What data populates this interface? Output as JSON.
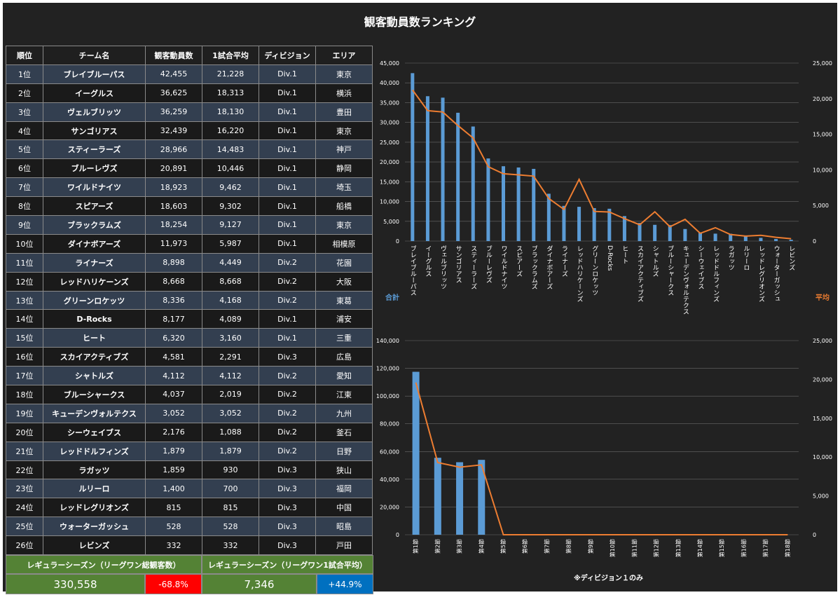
{
  "title": "観客動員数ランキング",
  "colors": {
    "bar": "#5b9bd5",
    "line": "#ed7d31",
    "positive": "#0070c0",
    "negative": "#ff0000",
    "summary": "#548235"
  },
  "table": {
    "headers": [
      "順位",
      "チーム名",
      "観客動員数",
      "1試合平均",
      "ディビジョン",
      "エリア"
    ],
    "rows": [
      [
        "1位",
        "ブレイブルーパス",
        "42,455",
        "21,228",
        "Div.1",
        "東京"
      ],
      [
        "2位",
        "イーグルス",
        "36,625",
        "18,313",
        "Div.1",
        "横浜"
      ],
      [
        "3位",
        "ヴェルブリッツ",
        "36,259",
        "18,130",
        "Div.1",
        "豊田"
      ],
      [
        "4位",
        "サンゴリアス",
        "32,439",
        "16,220",
        "Div.1",
        "東京"
      ],
      [
        "5位",
        "スティーラーズ",
        "28,966",
        "14,483",
        "Div.1",
        "神戸"
      ],
      [
        "6位",
        "ブルーレヴズ",
        "20,891",
        "10,446",
        "Div.1",
        "静岡"
      ],
      [
        "7位",
        "ワイルドナイツ",
        "18,923",
        "9,462",
        "Div.1",
        "埼玉"
      ],
      [
        "8位",
        "スピアーズ",
        "18,603",
        "9,302",
        "Div.1",
        "船橋"
      ],
      [
        "9位",
        "ブラックラムズ",
        "18,254",
        "9,127",
        "Div.1",
        "東京"
      ],
      [
        "10位",
        "ダイナボアーズ",
        "11,973",
        "5,987",
        "Div.1",
        "相模原"
      ],
      [
        "11位",
        "ライナーズ",
        "8,898",
        "4,449",
        "Div.2",
        "花園"
      ],
      [
        "12位",
        "レッドハリケーンズ",
        "8,668",
        "8,668",
        "Div.2",
        "大阪"
      ],
      [
        "13位",
        "グリーンロケッツ",
        "8,336",
        "4,168",
        "Div.2",
        "東葛"
      ],
      [
        "14位",
        "D-Rocks",
        "8,177",
        "4,089",
        "Div.1",
        "浦安"
      ],
      [
        "15位",
        "ヒート",
        "6,320",
        "3,160",
        "Div.1",
        "三重"
      ],
      [
        "16位",
        "スカイアクティブズ",
        "4,581",
        "2,291",
        "Div.3",
        "広島"
      ],
      [
        "17位",
        "シャトルズ",
        "4,112",
        "4,112",
        "Div.2",
        "愛知"
      ],
      [
        "18位",
        "ブルーシャークス",
        "4,037",
        "2,019",
        "Div.2",
        "江東"
      ],
      [
        "19位",
        "キューデンヴォルテクス",
        "3,052",
        "3,052",
        "Div.2",
        "九州"
      ],
      [
        "20位",
        "シーウェイブス",
        "2,176",
        "1,088",
        "Div.2",
        "釜石"
      ],
      [
        "21位",
        "レッドドルフィンズ",
        "1,879",
        "1,879",
        "Div.2",
        "日野"
      ],
      [
        "22位",
        "ラガッツ",
        "1,859",
        "930",
        "Div.3",
        "狭山"
      ],
      [
        "23位",
        "ルリーロ",
        "1,400",
        "700",
        "Div.3",
        "福岡"
      ],
      [
        "24位",
        "レッドレグリオンズ",
        "815",
        "815",
        "Div.3",
        "中国"
      ],
      [
        "25位",
        "ウォーターガッシュ",
        "528",
        "528",
        "Div.3",
        "昭島"
      ],
      [
        "26位",
        "レビンズ",
        "332",
        "332",
        "Div.3",
        "戸田"
      ]
    ]
  },
  "summary": {
    "total_label": "レギュラーシーズン（リーグワン総観客数）",
    "avg_label": "レギュラーシーズン（リーグワン1試合平均）",
    "total_value": "330,558",
    "total_change": "-68.8%",
    "avg_value": "7,346",
    "avg_change": "+44.9%"
  },
  "note": "※ディビジョン１のみ",
  "chart_data": [
    {
      "type": "bar",
      "categories": [
        "ブレイブルーパス",
        "イーグルス",
        "ヴェルブリッツ",
        "サンゴリアス",
        "スティーラーズ",
        "ブルーレヴズ",
        "ワイルドナイツ",
        "スピアーズ",
        "ブラックラムズ",
        "ダイナボアーズ",
        "ライナーズ",
        "レッドハリケーンズ",
        "グリーンロケッツ",
        "D-Rocks",
        "ヒート",
        "スカイアクティブズ",
        "シャトルズ",
        "ブルーシャークス",
        "キューデンヴォルテクス",
        "シーウェイブス",
        "レッドドルフィンズ",
        "ラガッツ",
        "ルリーロ",
        "レッドレグリオンズ",
        "ウォーターガッシュ",
        "レビンズ"
      ],
      "series": [
        {
          "name": "合計",
          "type": "bar",
          "axis": "left",
          "values": [
            42455,
            36625,
            36259,
            32439,
            28966,
            20891,
            18923,
            18603,
            18254,
            11973,
            8898,
            8668,
            8336,
            8177,
            6320,
            4581,
            4112,
            4037,
            3052,
            2176,
            1879,
            1859,
            1400,
            815,
            528,
            332
          ]
        },
        {
          "name": "平均",
          "type": "line",
          "axis": "right",
          "values": [
            21228,
            18313,
            18130,
            16220,
            14483,
            10446,
            9462,
            9302,
            9127,
            5987,
            4449,
            8668,
            4168,
            4089,
            3160,
            2291,
            4112,
            2019,
            3052,
            1088,
            1879,
            930,
            700,
            815,
            528,
            332
          ]
        }
      ],
      "ylim": [
        0,
        45000
      ],
      "yticks": [
        "45,000",
        "40,000",
        "35,000",
        "30,000",
        "25,000",
        "20,000",
        "15,000",
        "10,000",
        "5,000",
        "0"
      ],
      "y2lim": [
        0,
        25000
      ],
      "y2ticks": [
        "25,000",
        "20,000",
        "15,000",
        "10,000",
        "5,000",
        "0"
      ],
      "legend_left": "合計",
      "legend_right": "平均"
    },
    {
      "type": "bar",
      "categories": [
        "第1節",
        "第2節",
        "第3節",
        "第4節",
        "第5節",
        "第6節",
        "第7節",
        "第8節",
        "第9節",
        "第10節",
        "第11節",
        "第12節",
        "第13節",
        "第14節",
        "第15節",
        "第16節",
        "第17節",
        "第18節"
      ],
      "series": [
        {
          "name": "bar",
          "type": "bar",
          "axis": "left",
          "values": [
            117500,
            55500,
            52300,
            54000,
            0,
            0,
            0,
            0,
            0,
            0,
            0,
            0,
            0,
            0,
            0,
            0,
            0,
            0
          ]
        },
        {
          "name": "line",
          "type": "line",
          "axis": "right",
          "values": [
            19600,
            9300,
            8700,
            9000,
            0,
            0,
            0,
            0,
            0,
            0,
            0,
            0,
            0,
            0,
            0,
            0,
            0,
            0
          ]
        }
      ],
      "ylim": [
        0,
        140000
      ],
      "yticks": [
        "140,000",
        "120,000",
        "100,000",
        "80,000",
        "60,000",
        "40,000",
        "20,000",
        "0"
      ],
      "y2lim": [
        0,
        25000
      ],
      "y2ticks": [
        "25,000",
        "20,000",
        "15,000",
        "10,000",
        "5,000",
        "0"
      ]
    }
  ]
}
